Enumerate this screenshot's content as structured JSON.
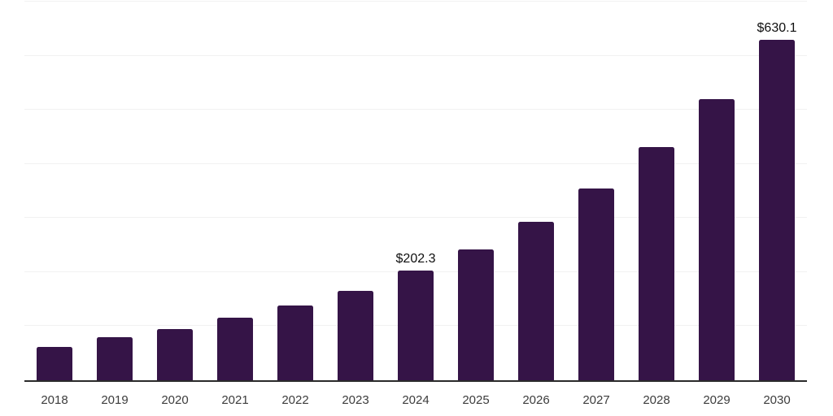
{
  "chart_data": {
    "type": "bar",
    "categories": [
      "2018",
      "2019",
      "2020",
      "2021",
      "2022",
      "2023",
      "2024",
      "2025",
      "2026",
      "2027",
      "2028",
      "2029",
      "2030"
    ],
    "values": [
      62,
      79,
      95,
      115,
      138,
      166,
      202.3,
      242,
      293,
      355,
      431,
      520,
      630.1
    ],
    "data_labels": [
      "",
      "",
      "",
      "",
      "",
      "",
      "$202.3",
      "",
      "",
      "",
      "",
      "",
      "$630.1"
    ],
    "title": "",
    "xlabel": "",
    "ylabel": "",
    "ylim": [
      0,
      700
    ],
    "grid_interval": 100,
    "grid_on": true,
    "legend_position": "none",
    "colors": {
      "bar": "#351447",
      "gridline": "#f1f1f1",
      "axis_line": "#2a2a2a",
      "tick_label": "#3c3c3c",
      "data_label": "#0f0f0f",
      "background": "#ffffff"
    }
  }
}
